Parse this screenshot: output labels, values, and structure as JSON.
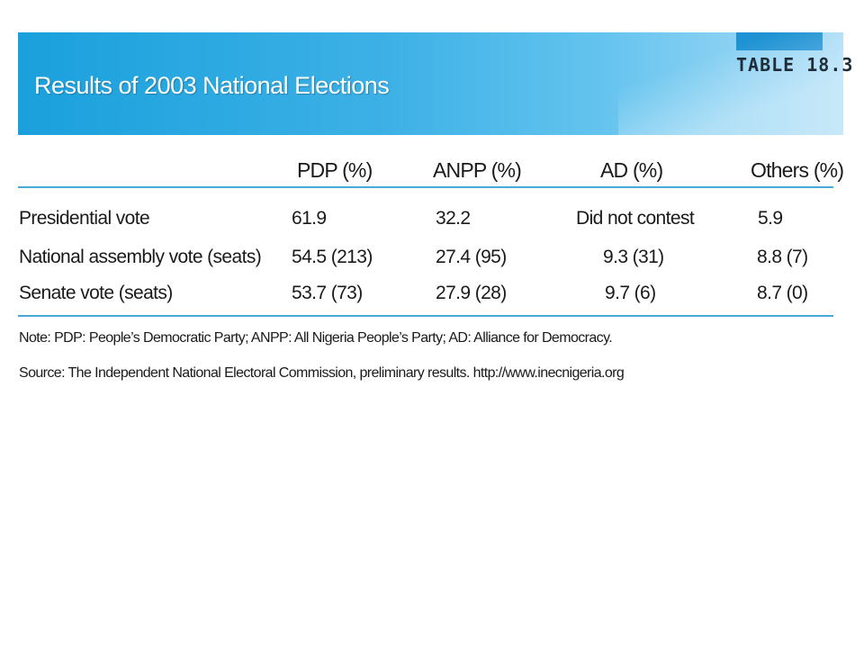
{
  "header": {
    "title": "Results of 2003 National Elections",
    "table_label": "TABLE 18.3",
    "accent_color": "#1aa0dc"
  },
  "table": {
    "columns": [
      "PDP (%)",
      "ANPP (%)",
      "AD (%)",
      "Others (%)"
    ],
    "rows": [
      {
        "label": "Presidential vote",
        "pdp": "61.9",
        "anpp": "32.2",
        "ad": "Did not contest",
        "others": "5.9"
      },
      {
        "label": "National assembly vote (seats)",
        "pdp": "54.5 (213)",
        "anpp": "27.4 (95)",
        "ad": "9.3 (31)",
        "others": "8.8 (7)"
      },
      {
        "label": "Senate vote (seats)",
        "pdp": "53.7 (73)",
        "anpp": "27.9 (28)",
        "ad": "9.7 (6)",
        "others": "8.7 (0)"
      }
    ]
  },
  "notes": {
    "note": "Note: PDP: People’s Democratic Party; ANPP: All Nigeria People’s Party; AD: Alliance for Democracy.",
    "source": "Source: The Independent National Electoral Commission, preliminary results. http://www.inecnigeria.org"
  }
}
